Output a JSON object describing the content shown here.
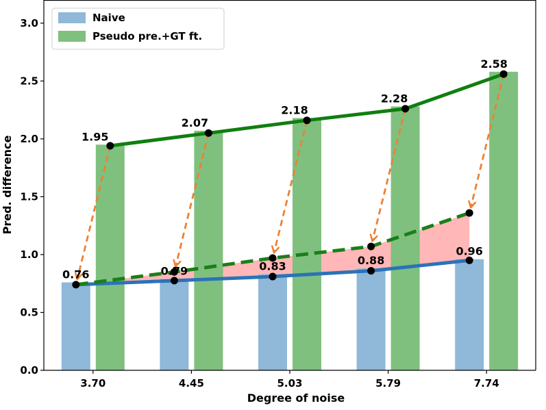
{
  "chart_data": {
    "type": "bar",
    "title": "",
    "xlabel": "Degree of noise",
    "ylabel": "Pred. difference",
    "categories": [
      "3.70",
      "4.45",
      "5.03",
      "5.79",
      "7.74"
    ],
    "ylim": [
      0,
      3.2
    ],
    "yticks": [
      "0.0",
      "0.5",
      "1.0",
      "1.5",
      "2.0",
      "2.5",
      "3.0"
    ],
    "series": [
      {
        "name": "Naive",
        "color": "#8fb8d9",
        "line_color": "#2a73b8",
        "values": [
          0.76,
          0.79,
          0.83,
          0.88,
          0.96
        ],
        "labels": [
          "0.76",
          "0.79",
          "0.83",
          "0.88",
          "0.96"
        ]
      },
      {
        "name": "Pseudo pre.+GT ft.",
        "color": "#7fc07f",
        "line_color": "#0f7f0f",
        "values": [
          1.95,
          2.07,
          2.18,
          2.28,
          2.58
        ],
        "labels": [
          "1.95",
          "2.07",
          "2.18",
          "2.28",
          "2.58"
        ]
      }
    ],
    "naive_line_points": [
      0.74,
      0.775,
      0.81,
      0.86,
      0.95
    ],
    "pseudo_line_points": [
      1.94,
      2.05,
      2.16,
      2.26,
      2.56
    ],
    "projected_line": {
      "color": "#1a7f1a",
      "style": "dashed",
      "values": [
        0.74,
        0.85,
        0.97,
        1.07,
        1.36
      ]
    },
    "arrows_color": "#ee8033",
    "fill_color": "#ffb3b3",
    "overlap_fill_color": "#a57f52",
    "legend_position": "top-left",
    "grid": false
  }
}
